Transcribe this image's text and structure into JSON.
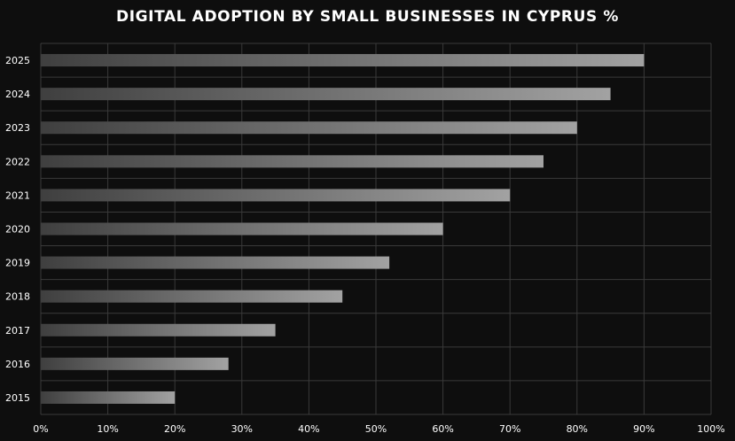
{
  "chart_data": {
    "type": "bar",
    "orientation": "horizontal",
    "title": "DIGITAL ADOPTION BY SMALL BUSINESSES IN CYPRUS %",
    "xlabel": "",
    "ylabel": "",
    "categories": [
      "2025",
      "2024",
      "2023",
      "2022",
      "2021",
      "2020",
      "2019",
      "2018",
      "2017",
      "2016",
      "2015"
    ],
    "values": [
      90,
      85,
      80,
      75,
      70,
      60,
      52,
      45,
      35,
      28,
      20
    ],
    "xlim": [
      0,
      100
    ],
    "xticks": [
      "0%",
      "10%",
      "20%",
      "30%",
      "40%",
      "50%",
      "60%",
      "70%",
      "80%",
      "90%",
      "100%"
    ],
    "grid": true,
    "legend": "none"
  },
  "colors": {
    "background": "#0e0e0e",
    "grid": "#3a3a3a",
    "bar_start": "#3f3f3f",
    "bar_end": "#a2a2a2",
    "text": "#ffffff"
  }
}
